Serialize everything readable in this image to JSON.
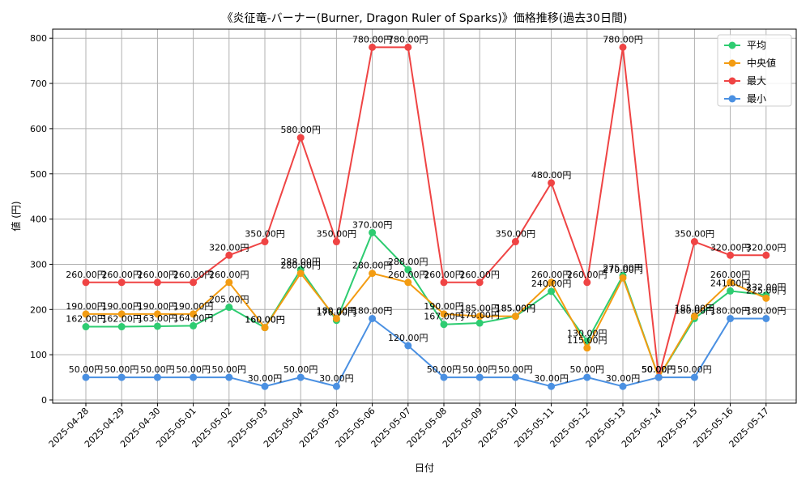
{
  "chart_data": {
    "type": "line",
    "title": "《炎征竜-バーナー(Burner, Dragon Ruler of Sparks)》価格推移(過去30日間)",
    "xlabel": "日付",
    "ylabel": "値 (円)",
    "ylim": [
      0,
      820
    ],
    "yticks": [
      0,
      100,
      200,
      300,
      400,
      500,
      600,
      700,
      800
    ],
    "grid": true,
    "legend_position": "top-right",
    "value_suffix": "円",
    "categories": [
      "2025-04-28",
      "2025-04-29",
      "2025-04-30",
      "2025-05-01",
      "2025-05-02",
      "2025-05-03",
      "2025-05-04",
      "2025-05-05",
      "2025-05-06",
      "2025-05-07",
      "2025-05-08",
      "2025-05-09",
      "2025-05-10",
      "2025-05-11",
      "2025-05-12",
      "2025-05-13",
      "2025-05-14",
      "2025-05-15",
      "2025-05-16",
      "2025-05-17"
    ],
    "series": [
      {
        "name": "平均",
        "color": "#2ecc71",
        "values": [
          162,
          162,
          163,
          164,
          205,
          160,
          288,
          176,
          370,
          288,
          167,
          170,
          185,
          240,
          130,
          275,
          50,
          180,
          241,
          232
        ]
      },
      {
        "name": "中央値",
        "color": "#f39c12",
        "values": [
          190,
          190,
          190,
          190,
          260,
          160,
          280,
          180,
          280,
          260,
          190,
          185,
          185,
          260,
          115,
          270,
          50,
          185,
          260,
          225
        ]
      },
      {
        "name": "最大",
        "color": "#ef4444",
        "values": [
          260,
          260,
          260,
          260,
          320,
          350,
          580,
          350,
          780,
          780,
          260,
          260,
          350,
          480,
          260,
          780,
          50,
          350,
          320,
          320
        ]
      },
      {
        "name": "最小",
        "color": "#4a90e2",
        "values": [
          50,
          50,
          50,
          50,
          50,
          30,
          50,
          30,
          180,
          120,
          50,
          50,
          50,
          30,
          50,
          30,
          50,
          50,
          180,
          180
        ]
      }
    ]
  }
}
